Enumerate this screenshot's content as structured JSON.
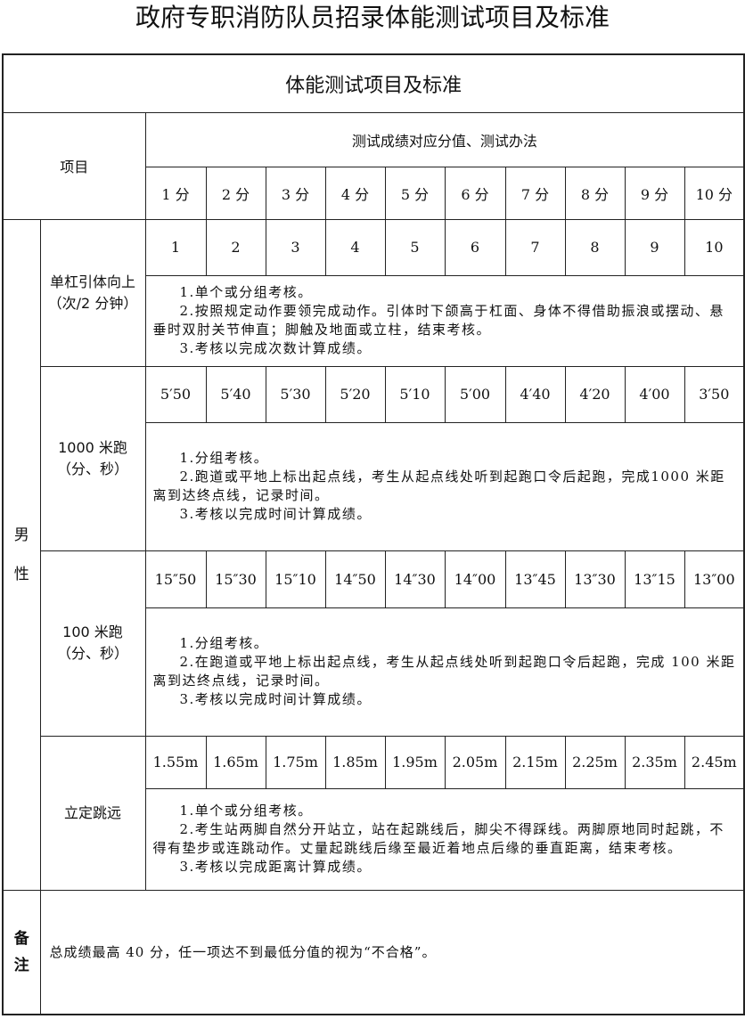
{
  "title": "政府专职消防队员招录体能测试项目及标准",
  "table": {
    "subtitle": "体能测试项目及标准",
    "item_header": "项目",
    "score_header": "测试成绩对应分值、测试办法",
    "points": [
      "1 分",
      "2 分",
      "3 分",
      "4 分",
      "5 分",
      "6 分",
      "7 分",
      "8 分",
      "9 分",
      "10 分"
    ],
    "gender": "男性",
    "gender_chars": [
      "男",
      "性"
    ],
    "events": [
      {
        "name": "单杠引体向上（次/2 分钟）",
        "values": [
          "1",
          "2",
          "3",
          "4",
          "5",
          "6",
          "7",
          "8",
          "9",
          "10"
        ],
        "method": [
          "1.单个或分组考核。",
          "2.按照规定动作要领完成动作。引体时下颌高于杠面、身体不得借助振浪或摆动、悬垂时双肘关节伸直；脚触及地面或立柱，结束考核。",
          "3.考核以完成次数计算成绩。"
        ]
      },
      {
        "name": "1000 米跑（分、秒）",
        "values": [
          "5′50",
          "5′40",
          "5′30",
          "5′20",
          "5′10",
          "5′00",
          "4′40",
          "4′20",
          "4′00",
          "3′50"
        ],
        "method": [
          "1.分组考核。",
          "2.跑道或平地上标出起点线，考生从起点线处听到起跑口令后起跑，完成1000 米距离到达终点线，记录时间。",
          "3.考核以完成时间计算成绩。"
        ]
      },
      {
        "name": "100 米跑（分、秒）",
        "values": [
          "15″50",
          "15″30",
          "15″10",
          "14″50",
          "14″30",
          "14″00",
          "13″45",
          "13″30",
          "13″15",
          "13″00"
        ],
        "method": [
          "1.分组考核。",
          "2.在跑道或平地上标出起点线，考生从起点线处听到起跑口令后起跑，完成 100 米距离到达终点线，记录时间。",
          "3.考核以完成时间计算成绩。"
        ]
      },
      {
        "name": "立定跳远",
        "values": [
          "1.55m",
          "1.65m",
          "1.75m",
          "1.85m",
          "1.95m",
          "2.05m",
          "2.15m",
          "2.25m",
          "2.35m",
          "2.45m"
        ],
        "method": [
          "1.单个或分组考核。",
          "2.考生站两脚自然分开站立，站在起跳线后，脚尖不得踩线。两脚原地同时起跳，不得有垫步或连跳动作。丈量起跳线后缘至最近着地点后缘的垂直距离，结束考核。",
          "3.考核以完成距离计算成绩。"
        ]
      }
    ],
    "note_label_chars": [
      "备",
      "注"
    ],
    "note": "总成绩最高 40 分，任一项达不到最低分值的视为“不合格”。"
  }
}
